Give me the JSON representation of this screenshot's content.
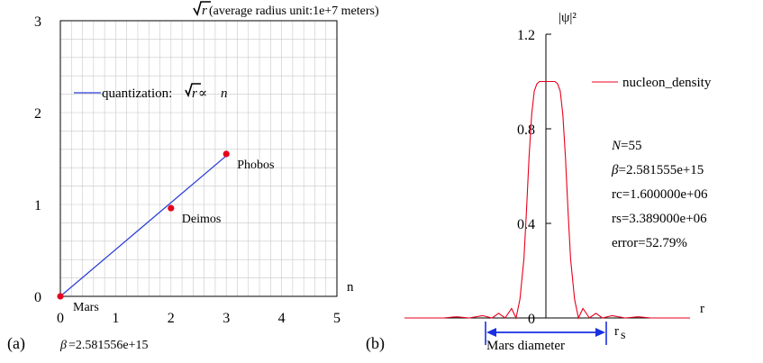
{
  "colors": {
    "line_a": "#2a3fd6",
    "point": "#e8001c",
    "line_b": "#e8001c",
    "arrow": "#1a2fe0",
    "grid": "#c8c8c8"
  },
  "panel_a": {
    "label": "(a)",
    "beta": "=2.581556e+15",
    "beta_symbol": "β",
    "title_rest": " (average radius unit:1e+7 meters)",
    "title_sym": "r",
    "xlabel": "n",
    "legend_text": "quantization: ",
    "legend_rel_r": "r",
    "legend_rel_prop": " ∝ ",
    "legend_rel_n": "n"
  },
  "panel_b": {
    "label": "(b)",
    "ylabel": "|ψ|²",
    "xlabel": "r",
    "legend": "nucleon_density",
    "params": [
      {
        "key": "N",
        "value": "=55",
        "italic": true
      },
      {
        "key": "β",
        "value": "=2.581555e+15",
        "italic": true
      },
      {
        "key": "rc",
        "value": "=1.600000e+06",
        "italic": false
      },
      {
        "key": "rs",
        "value": "=3.389000e+06",
        "italic": false
      },
      {
        "key": "error",
        "value": "=52.79%",
        "italic": false
      }
    ],
    "arrow_label": "Mars diameter",
    "rs_main": "r",
    "rs_sub": "s"
  },
  "chart_data": [
    {
      "type": "scatter",
      "title": "√r (average radius unit:1e+7 meters)",
      "xlabel": "n",
      "ylabel": "",
      "xlim": [
        0,
        5
      ],
      "ylim": [
        0,
        3
      ],
      "xticks": [
        "0",
        "1",
        "2",
        "3",
        "4",
        "5"
      ],
      "yticks": [
        "0",
        "1",
        "2",
        "3"
      ],
      "grid": true,
      "legend": "quantization: √r ∝ n",
      "line": {
        "x": [
          0,
          3
        ],
        "y": [
          0,
          1.53
        ]
      },
      "points": [
        {
          "name": "Mars",
          "x": 0,
          "y": 0
        },
        {
          "name": "Deimos",
          "x": 2,
          "y": 0.96
        },
        {
          "name": "Phobos",
          "x": 3,
          "y": 1.55
        }
      ]
    },
    {
      "type": "line",
      "title": "",
      "xlabel": "r",
      "ylabel": "|ψ|²",
      "ylim": [
        0,
        1.2
      ],
      "yticks": [
        "0",
        "0.4",
        "0.8",
        "1.2"
      ],
      "legend": "top-right",
      "series": [
        {
          "name": "nucleon_density",
          "x": [
            -22,
            -16,
            -14,
            -12,
            -10,
            -8.5,
            -7.5,
            -6.5,
            -5.5,
            -4.8,
            -4.2,
            -3.6,
            -3.2,
            -2.8,
            -2.4,
            -2.0,
            -1.6,
            -1.2,
            -0.8,
            -0.4,
            0,
            0.4,
            0.8,
            1.2,
            1.6,
            2.0,
            2.4,
            2.8,
            3.2,
            3.6,
            4.2,
            4.8,
            5.5,
            6.5,
            7.5,
            8.5,
            10,
            12,
            14,
            16,
            22
          ],
          "y": [
            0,
            0,
            0.005,
            0,
            0.01,
            0.0,
            0.02,
            0.0,
            0.04,
            0.0,
            0.08,
            0.25,
            0.45,
            0.68,
            0.86,
            0.96,
            0.99,
            1.0,
            1.0,
            1.0,
            1.0,
            1.0,
            1.0,
            1.0,
            0.99,
            0.96,
            0.86,
            0.68,
            0.45,
            0.25,
            0.08,
            0.0,
            0.04,
            0.0,
            0.02,
            0.0,
            0.01,
            0,
            0.005,
            0,
            0
          ]
        }
      ]
    }
  ]
}
